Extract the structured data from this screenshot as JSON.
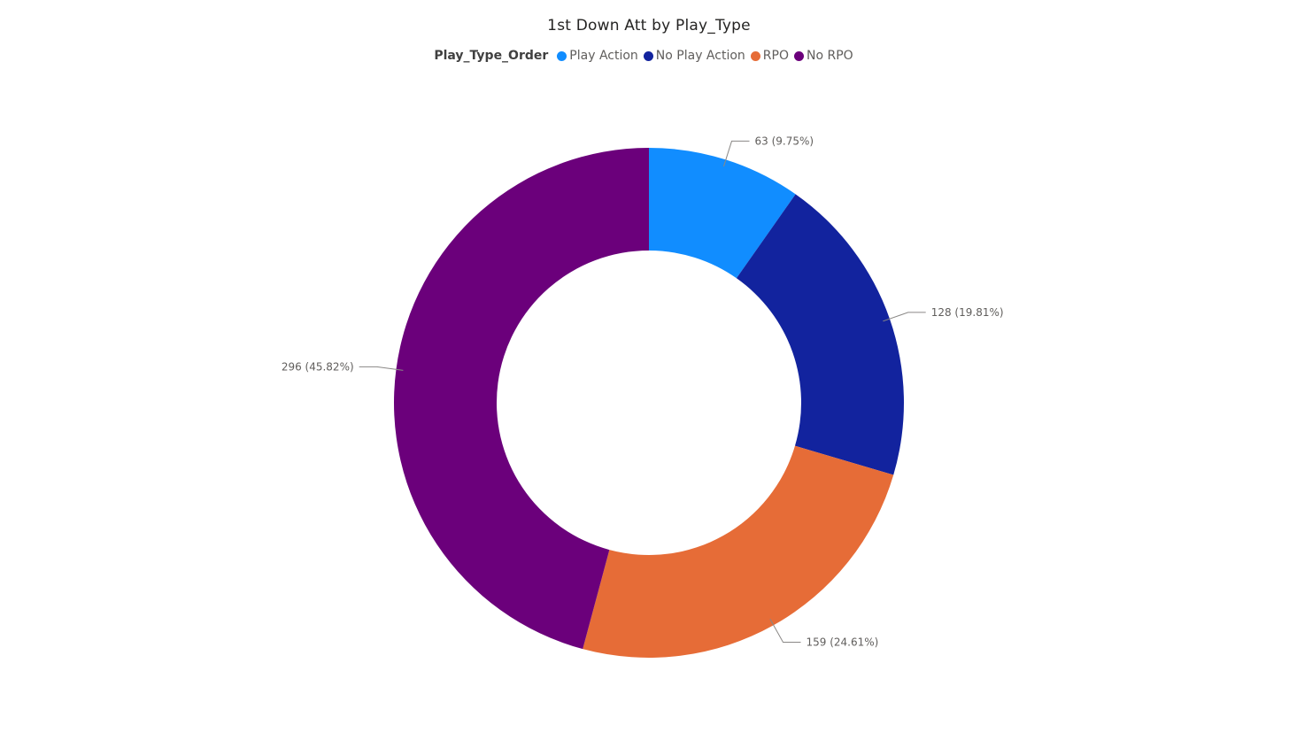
{
  "chart_data": {
    "type": "pie",
    "title": "1st Down Att by Play_Type",
    "legend_title": "Play_Type_Order",
    "legend_position": "top-center",
    "donut": true,
    "slices": [
      {
        "name": "Play Action",
        "value": 63,
        "percent": "9.75%",
        "color": "#118dff",
        "label": "63 (9.75%)"
      },
      {
        "name": "No Play Action",
        "value": 128,
        "percent": "19.81%",
        "color": "#12239e",
        "label": "128 (19.81%)"
      },
      {
        "name": "RPO",
        "value": 159,
        "percent": "24.61%",
        "color": "#e66c37",
        "label": "159 (24.61%)"
      },
      {
        "name": "No RPO",
        "value": 296,
        "percent": "45.82%",
        "color": "#6b007b",
        "label": "296 (45.82%)"
      }
    ]
  }
}
